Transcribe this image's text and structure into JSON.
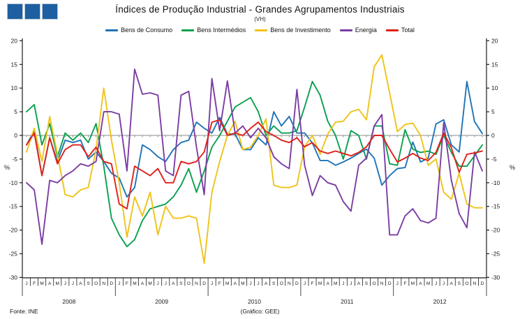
{
  "header": {
    "title": "Índices de Produção Industrial - Grandes Agrupamentos Industriais",
    "subtitle": "(VH)",
    "logo_squares_color": "#1d5fa0"
  },
  "legend": [
    {
      "label": "Bens de Consumo",
      "color": "#2074b7"
    },
    {
      "label": "Bens Intermédios",
      "color": "#0aa04f"
    },
    {
      "label": "Bens de Investimento",
      "color": "#efc319"
    },
    {
      "label": "Energia",
      "color": "#7b3da3"
    },
    {
      "label": "Total",
      "color": "#df2119"
    }
  ],
  "footer": {
    "source": "Fonte:  INE",
    "credit": "(Gráfico:  GEE)"
  },
  "chart_data": {
    "type": "line",
    "title": "Índices de Produção Industrial - Grandes Agrupamentos Industriais",
    "subtitle": "(VH)",
    "ylabel_left": "%",
    "ylabel_right": "%",
    "ylim": [
      -30,
      20
    ],
    "ytick_step": 5,
    "grid": "zero-line-only",
    "zero_line_color": "#8c8c8c",
    "axis_color": "#1a1a1a",
    "years": [
      "2008",
      "2009",
      "2010",
      "2011",
      "2012"
    ],
    "month_letters": [
      "J",
      "F",
      "M",
      "A",
      "M",
      "J",
      "J",
      "A",
      "S",
      "O",
      "N",
      "D"
    ],
    "series": [
      {
        "name": "Bens de Consumo",
        "color": "#2074b7",
        "values": [
          -2,
          1,
          -8.5,
          -0.5,
          -5.5,
          -1,
          -1.5,
          -1,
          -5,
          -3.5,
          -5.5,
          -8,
          -9,
          -13,
          -11,
          -2,
          -3,
          -4.5,
          -5.5,
          -3,
          -1.5,
          -1,
          2.8,
          1.5,
          0.5,
          3.8,
          0.3,
          0.3,
          -3,
          -3,
          -0.5,
          -2,
          5,
          2,
          4,
          0.5,
          0.5,
          -1.6,
          -5.3,
          -5.3,
          -6.3,
          -5.6,
          -4.8,
          -3.8,
          -2.9,
          -4.8,
          -10.5,
          -8.5,
          -7,
          -6.8,
          -1.4,
          -5.6,
          -4.8,
          2.4,
          3.3,
          -2,
          -3.5,
          11.4,
          2.9,
          0.4
        ]
      },
      {
        "name": "Bens Intermédios",
        "color": "#0aa04f",
        "values": [
          5,
          6.5,
          -2,
          2.5,
          -4.5,
          0.5,
          -1,
          0.5,
          -1.5,
          2.5,
          -6.5,
          -17.5,
          -21,
          -23.5,
          -22,
          -18,
          -15.5,
          -15,
          -14.5,
          -13,
          -10.5,
          -7,
          -12,
          -7.5,
          -2.5,
          0,
          3,
          6,
          7,
          8,
          5,
          0,
          2,
          0.5,
          0.5,
          1,
          6,
          11.4,
          8.5,
          3,
          0,
          -5,
          1,
          0,
          -5,
          2,
          2,
          -6,
          -6.3,
          1.2,
          -2.9,
          -3.6,
          -3.3,
          -4,
          0,
          -3.6,
          -6.5,
          -6.5,
          -4.3,
          -2
        ]
      },
      {
        "name": "Bens de Investimento",
        "color": "#efc319",
        "values": [
          -3.5,
          1.5,
          -5.5,
          4,
          -4,
          -12.5,
          -13,
          -11.5,
          -11,
          -3,
          10,
          -1,
          -10,
          -21.5,
          -13,
          -17,
          -12,
          -21,
          -15,
          -17.5,
          -17.5,
          -17,
          -17.5,
          -27,
          -12,
          -5.5,
          0,
          3,
          -3,
          -2.5,
          0,
          3.5,
          -10.5,
          -11,
          -11,
          -10.5,
          -2.4,
          0,
          -4,
          0.3,
          2.8,
          3,
          5,
          5.5,
          3.3,
          14.5,
          17,
          9,
          0.8,
          2.3,
          2.6,
          0,
          -6.3,
          -5,
          -12,
          -13.5,
          -8,
          -14.5,
          -15.3,
          -15.3
        ]
      },
      {
        "name": "Energia",
        "color": "#7b3da3",
        "values": [
          -10,
          -11.5,
          -23,
          -9.5,
          -10,
          -8.5,
          -7.5,
          -6,
          -6.5,
          -5.5,
          5,
          5,
          4.5,
          -7.5,
          14,
          8.7,
          9,
          8.5,
          -7.5,
          -8.5,
          8.5,
          9.3,
          -2.5,
          -12.5,
          12,
          1,
          11.5,
          0.5,
          2,
          -0.5,
          1.5,
          -0.5,
          -4.5,
          -6,
          -7,
          9.7,
          -6.3,
          -12.7,
          -8.5,
          -10,
          -10.5,
          -14,
          -16,
          -6.3,
          -4.8,
          2,
          4.4,
          -21,
          -21,
          -17,
          -15.5,
          -18,
          -18.5,
          -17.5,
          2.7,
          -9.5,
          -16.5,
          -19.5,
          -3.5,
          -7.5
        ]
      },
      {
        "name": "Total",
        "color": "#df2119",
        "values": [
          -2,
          0.5,
          -8.5,
          -0.5,
          -6,
          -3,
          -2,
          -2,
          -4.5,
          -2.5,
          -5.5,
          -6,
          -14.5,
          -15.5,
          -6.5,
          -7.5,
          -8.5,
          -7,
          -10,
          -10,
          -5.5,
          -6,
          -5.5,
          -3.5,
          2.8,
          3.3,
          0,
          0.5,
          0,
          1.5,
          2.8,
          0.8,
          0,
          -1,
          -1.5,
          -0.5,
          -2.4,
          -1.5,
          -3.3,
          -3.8,
          -3.3,
          -3.8,
          -4.3,
          -3.6,
          -2.4,
          0,
          0,
          -2.9,
          -5.6,
          -4.8,
          -3.8,
          -4.8,
          -5.3,
          -3.6,
          0.5,
          -2.6,
          -7.8,
          -4,
          -3.7,
          -3.3
        ]
      }
    ]
  }
}
